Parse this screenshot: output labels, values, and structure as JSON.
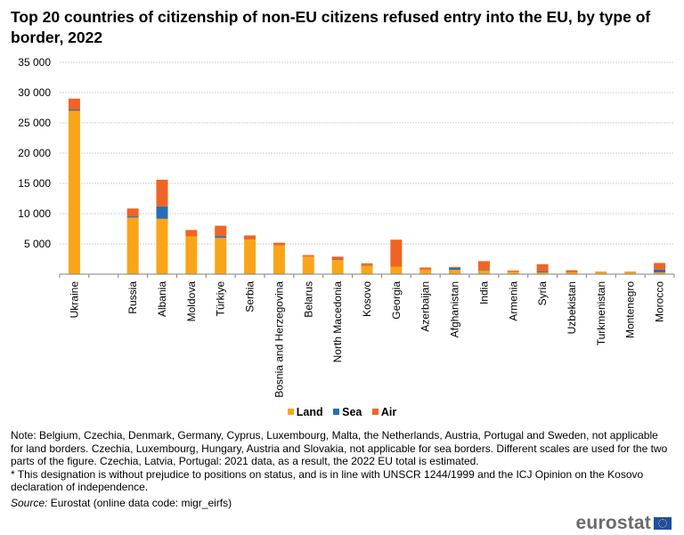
{
  "title": "Top 20 countries of citizenship of non-EU citizens refused entry into the EU, by type of border, 2022",
  "chart_data": {
    "type": "bar",
    "stacked": true,
    "title": "Top 20 countries of citizenship of non-EU citizens refused entry into the EU, by type of border, 2022",
    "xlabel": "",
    "ylabel": "",
    "ylim": [
      0,
      35000
    ],
    "yticks": [
      0,
      5000,
      10000,
      15000,
      20000,
      25000,
      30000,
      35000
    ],
    "ytick_labels": [
      "",
      "5 000",
      "10 000",
      "15 000",
      "20 000",
      "25 000",
      "30 000",
      "35 000"
    ],
    "grid": true,
    "legend_position": "bottom",
    "categories": [
      "Ukraine",
      "",
      "Russia",
      "Albania",
      "Moldova",
      "Türkiye",
      "Serbia",
      "Bosnia and Herzegovina",
      "Belarus",
      "North Macedonia",
      "Kosovo",
      "Georgia",
      "Azerbaijan",
      "Afghanistan",
      "India",
      "Armenia",
      "Syria",
      "Uzbekistan",
      "Turkmenistan",
      "Montenegro",
      "Morocco"
    ],
    "series": [
      {
        "name": "Land",
        "color": "#faa519",
        "values": [
          27000,
          null,
          9350,
          9150,
          6250,
          6000,
          5700,
          4750,
          2900,
          2350,
          1450,
          1250,
          750,
          700,
          600,
          400,
          300,
          300,
          350,
          350,
          300
        ]
      },
      {
        "name": "Sea",
        "color": "#286eb4",
        "values": [
          200,
          null,
          200,
          2050,
          0,
          300,
          0,
          0,
          0,
          100,
          50,
          0,
          0,
          350,
          100,
          0,
          150,
          0,
          0,
          0,
          450
        ]
      },
      {
        "name": "Air",
        "color": "#f06423",
        "values": [
          1800,
          null,
          1300,
          4400,
          1050,
          1700,
          700,
          450,
          250,
          450,
          300,
          4450,
          350,
          150,
          1450,
          200,
          1200,
          350,
          50,
          50,
          1100
        ]
      }
    ]
  },
  "legend": {
    "items": [
      {
        "label": "Land",
        "color": "#faa519"
      },
      {
        "label": "Sea",
        "color": "#286eb4"
      },
      {
        "label": "Air",
        "color": "#f06423"
      }
    ]
  },
  "notes": {
    "note": "Note: Belgium, Czechia, Denmark, Germany, Cyprus, Luxembourg, Malta, the Netherlands, Austria, Portugal and Sweden, not applicable for land borders. Czechia, Luxembourg, Hungary, Austria and Slovakia, not applicable for sea borders. Different scales are used for the two parts of the figure. Czechia, Latvia, Portugal: 2021 data, as a result, the 2022 EU total is estimated.",
    "footnote": "* This designation is without prejudice to positions on status, and is in line with UNSCR 1244/1999 and the ICJ Opinion on the Kosovo declaration of independence.",
    "source_label": "Source:",
    "source_text": " Eurostat (online data code: migr_eirfs)"
  },
  "logo": {
    "text": "eurostat"
  }
}
